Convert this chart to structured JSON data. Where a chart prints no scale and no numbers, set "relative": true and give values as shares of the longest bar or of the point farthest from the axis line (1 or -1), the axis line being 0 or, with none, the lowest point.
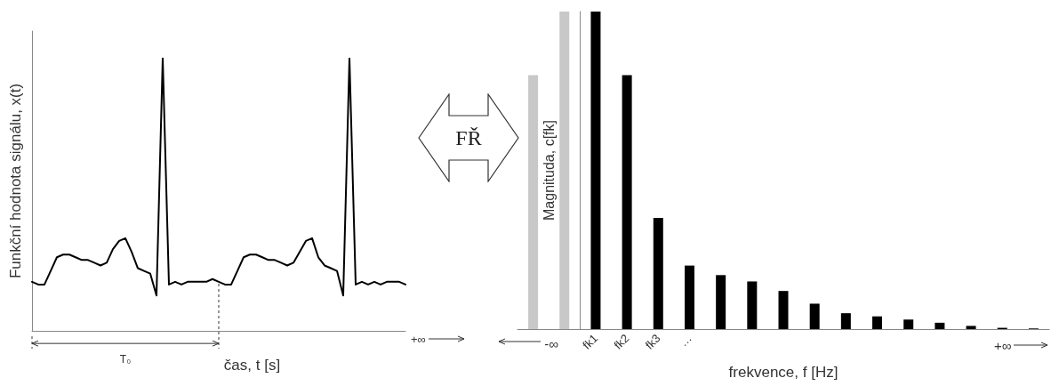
{
  "chart_data": [
    {
      "type": "line",
      "relative": true,
      "xlabel": "čas, t [s]",
      "ylabel": "Funkční hodnota signálu, x(t)",
      "categories": [
        null,
        null,
        null,
        null,
        null,
        null,
        null,
        null,
        null,
        null,
        null,
        null,
        null,
        null,
        null,
        null,
        null,
        null,
        null,
        null,
        null,
        null,
        null,
        null,
        null,
        null,
        null,
        null,
        null,
        null,
        null,
        null,
        null,
        null,
        null,
        null,
        null,
        null,
        null,
        null,
        null,
        null,
        null,
        null,
        null,
        null,
        null,
        null,
        null,
        null,
        null,
        null,
        null,
        null,
        null,
        null,
        null,
        null,
        null,
        null,
        null
      ],
      "values": [
        0.18,
        0.17,
        0.17,
        0.22,
        0.27,
        0.28,
        0.28,
        0.27,
        0.26,
        0.26,
        0.25,
        0.24,
        0.25,
        0.3,
        0.33,
        0.34,
        0.29,
        0.23,
        0.22,
        0.21,
        0.13,
        1,
        0.17,
        0.18,
        0.17,
        0.18,
        0.18,
        0.18,
        0.18,
        0.19,
        0.18,
        0.17,
        0.17,
        0.22,
        0.27,
        0.28,
        0.28,
        0.27,
        0.26,
        0.26,
        0.25,
        0.24,
        0.25,
        0.29,
        0.33,
        0.34,
        0.27,
        0.24,
        0.23,
        0.22,
        0.13,
        1,
        0.17,
        0.18,
        0.17,
        0.18,
        0.17,
        0.18,
        0.18,
        0.18,
        0.17
      ],
      "color": "#000000",
      "marker": "none",
      "line_style": "solid",
      "annotations": [
        "T₀",
        "+∞",
        "FŘ"
      ]
    },
    {
      "type": "bar",
      "relative": true,
      "xlabel": "frekvence, f [Hz]",
      "ylabel": "Magnituda, c[fk]",
      "categories": [
        null,
        null,
        "fk1",
        "fk2",
        "fk3",
        "…",
        null,
        null,
        null,
        null,
        null,
        null,
        null,
        null,
        null,
        null,
        null
      ],
      "values": [
        0.8,
        1,
        1,
        0.8,
        0.35,
        0.2,
        0.17,
        0.15,
        0.12,
        0.08,
        0.05,
        0.04,
        0.03,
        0.02,
        0.01,
        0.004,
        0.002
      ],
      "colors": [
        "#c8c8c8",
        "#c8c8c8",
        "#000000",
        "#000000",
        "#000000",
        "#000000",
        "#000000",
        "#000000",
        "#000000",
        "#000000",
        "#000000",
        "#000000",
        "#000000",
        "#000000",
        "#000000",
        "#000000",
        "#000000"
      ],
      "annotations": [
        "-∞",
        "+∞"
      ]
    }
  ]
}
